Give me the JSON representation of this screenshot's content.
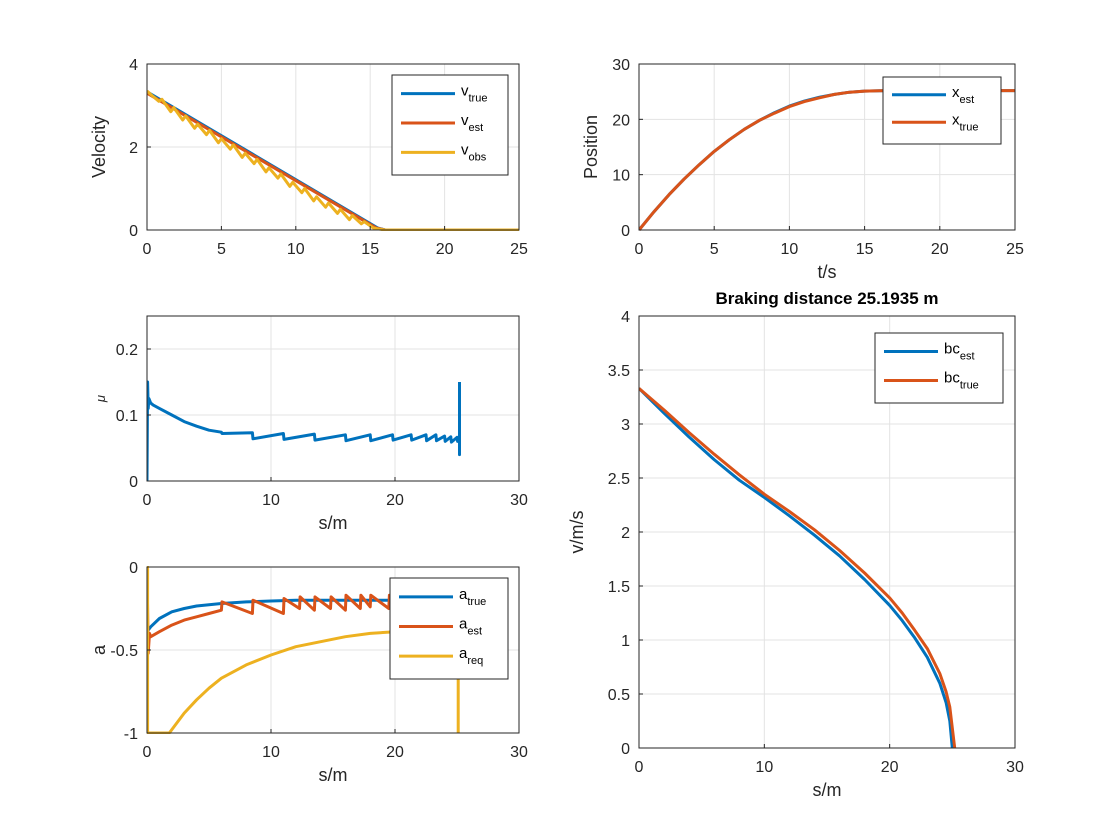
{
  "chart_data": [
    {
      "id": "velocity",
      "type": "line",
      "xlim": [
        0,
        25
      ],
      "ylim": [
        0,
        4
      ],
      "xticks": [
        0,
        5,
        10,
        15,
        20,
        25
      ],
      "yticks": [
        0,
        2,
        4
      ],
      "xlabel": "",
      "ylabel": "Velocity",
      "title": "",
      "grid": true,
      "legend": "top-right",
      "series": [
        {
          "name": "v",
          "sub": "true",
          "color": "#0072BD",
          "x": [
            0,
            15.5,
            16,
            25
          ],
          "y": [
            3.33,
            0.05,
            0,
            0
          ]
        },
        {
          "name": "v",
          "sub": "est",
          "color": "#D95319",
          "x": [
            0,
            15.4,
            16,
            25
          ],
          "y": [
            3.3,
            0.05,
            0,
            0
          ]
        },
        {
          "name": "v",
          "sub": "obs",
          "color": "#EDB120",
          "x": [
            0,
            0.3,
            0.8,
            1.0,
            1.6,
            1.8,
            2.4,
            2.6,
            3.2,
            3.4,
            4.0,
            4.2,
            4.8,
            5.0,
            5.6,
            5.8,
            6.4,
            6.6,
            7.2,
            7.4,
            8.0,
            8.2,
            8.8,
            9.0,
            9.6,
            9.8,
            10.4,
            10.6,
            11.2,
            11.4,
            12.0,
            12.2,
            12.8,
            13.0,
            13.6,
            13.8,
            14.4,
            14.6,
            15.2,
            15.5,
            16.0,
            25
          ],
          "y": [
            3.35,
            3.25,
            3.1,
            3.15,
            2.85,
            2.95,
            2.65,
            2.75,
            2.45,
            2.55,
            2.3,
            2.4,
            2.1,
            2.2,
            1.95,
            2.05,
            1.75,
            1.85,
            1.6,
            1.7,
            1.4,
            1.5,
            1.25,
            1.35,
            1.05,
            1.15,
            0.9,
            1.0,
            0.7,
            0.8,
            0.55,
            0.65,
            0.4,
            0.5,
            0.25,
            0.35,
            0.15,
            0.2,
            0.05,
            0.03,
            0,
            0
          ]
        }
      ]
    },
    {
      "id": "position",
      "type": "line",
      "xlim": [
        0,
        25
      ],
      "ylim": [
        0,
        30
      ],
      "xticks": [
        0,
        5,
        10,
        15,
        20,
        25
      ],
      "yticks": [
        0,
        10,
        20,
        30
      ],
      "xlabel": "t/s",
      "ylabel": "Position",
      "title": "",
      "grid": true,
      "legend": "top-right",
      "series": [
        {
          "name": "x",
          "sub": "est",
          "color": "#0072BD",
          "x": [
            0,
            1,
            2,
            3,
            4,
            5,
            6,
            7,
            8,
            9,
            10,
            11,
            12,
            13,
            14,
            15,
            16,
            17,
            25
          ],
          "y": [
            0,
            3.3,
            6.4,
            9.2,
            11.8,
            14.2,
            16.3,
            18.2,
            19.8,
            21.2,
            22.4,
            23.3,
            24.0,
            24.5,
            24.9,
            25.1,
            25.15,
            25.19,
            25.19
          ]
        },
        {
          "name": "x",
          "sub": "true",
          "color": "#D95319",
          "x": [
            0,
            1,
            2,
            3,
            4,
            5,
            6,
            7,
            8,
            9,
            10,
            11,
            12,
            13,
            14,
            15,
            16,
            17,
            25
          ],
          "y": [
            0,
            3.3,
            6.4,
            9.2,
            11.8,
            14.2,
            16.3,
            18.2,
            19.8,
            21.1,
            22.3,
            23.2,
            23.9,
            24.5,
            24.9,
            25.1,
            25.15,
            25.19,
            25.19
          ]
        }
      ]
    },
    {
      "id": "mu",
      "type": "line",
      "xlim": [
        0,
        30
      ],
      "ylim": [
        0,
        0.25
      ],
      "xticks": [
        0,
        10,
        20,
        30
      ],
      "yticks": [
        0,
        0.1,
        0.2
      ],
      "xlabel": "s/m",
      "ylabel": "μ",
      "title": "",
      "grid": true,
      "legend": "none",
      "series": [
        {
          "name": "",
          "sub": "",
          "color": "#0072BD",
          "x": [
            0,
            0.05,
            0.1,
            0.15,
            0.3,
            0.5,
            1.0,
            2.0,
            3.0,
            4.0,
            5.0,
            6.0,
            6.05,
            8.5,
            8.55,
            11.0,
            11.05,
            13.5,
            13.55,
            16.0,
            16.05,
            18.0,
            18.05,
            19.8,
            19.85,
            21.3,
            21.35,
            22.5,
            22.55,
            23.3,
            23.35,
            24.0,
            24.05,
            24.5,
            24.55,
            25.0,
            25.05,
            25.2,
            25.2,
            25.2
          ],
          "y": [
            0,
            0.15,
            0.11,
            0.125,
            0.118,
            0.115,
            0.11,
            0.1,
            0.09,
            0.083,
            0.077,
            0.074,
            0.072,
            0.073,
            0.064,
            0.072,
            0.063,
            0.071,
            0.062,
            0.07,
            0.061,
            0.07,
            0.061,
            0.07,
            0.062,
            0.07,
            0.062,
            0.07,
            0.061,
            0.07,
            0.061,
            0.068,
            0.06,
            0.067,
            0.059,
            0.066,
            0.06,
            0.065,
            0.04,
            0.15
          ]
        }
      ]
    },
    {
      "id": "accel",
      "type": "line",
      "xlim": [
        0,
        30
      ],
      "ylim": [
        -1,
        0
      ],
      "xticks": [
        0,
        10,
        20,
        30
      ],
      "yticks": [
        -1,
        -0.5,
        0
      ],
      "xlabel": "s/m",
      "ylabel": "a",
      "title": "",
      "grid": true,
      "legend": "top-right",
      "series": [
        {
          "name": "a",
          "sub": "true",
          "color": "#0072BD",
          "x": [
            0.1,
            0.3,
            1,
            2,
            3,
            4,
            6,
            8,
            10,
            12,
            14,
            16,
            18,
            20,
            22,
            24,
            25
          ],
          "y": [
            -0.38,
            -0.36,
            -0.31,
            -0.27,
            -0.25,
            -0.235,
            -0.22,
            -0.21,
            -0.205,
            -0.2,
            -0.2,
            -0.2,
            -0.2,
            -0.2,
            -0.2,
            -0.2,
            -0.2
          ]
        },
        {
          "name": "a",
          "sub": "est",
          "color": "#D95319",
          "x": [
            0,
            0.1,
            0.2,
            0.3,
            1,
            2,
            3,
            4,
            5,
            6,
            6.05,
            8.5,
            8.55,
            11,
            11.05,
            12.3,
            12.35,
            13.5,
            13.55,
            14.8,
            14.85,
            16,
            16.05,
            17.2,
            17.25,
            18,
            18.05,
            19.5,
            19.55,
            21,
            21.05,
            22,
            22.05,
            23,
            23.05,
            24,
            24.05,
            25
          ],
          "y": [
            0,
            -0.52,
            -0.4,
            -0.42,
            -0.39,
            -0.35,
            -0.32,
            -0.3,
            -0.28,
            -0.26,
            -0.21,
            -0.28,
            -0.2,
            -0.28,
            -0.19,
            -0.25,
            -0.18,
            -0.26,
            -0.18,
            -0.25,
            -0.18,
            -0.26,
            -0.17,
            -0.25,
            -0.17,
            -0.24,
            -0.17,
            -0.25,
            -0.17,
            -0.25,
            -0.17,
            -0.24,
            -0.17,
            -0.24,
            -0.17,
            -0.24,
            -0.17,
            -0.2
          ]
        },
        {
          "name": "a",
          "sub": "req",
          "color": "#EDB120",
          "x": [
            0,
            0,
            0.05,
            0.05,
            1.8,
            3,
            4,
            5,
            6,
            8,
            10,
            12,
            14,
            16,
            18,
            20,
            22,
            24,
            25.1,
            25.1
          ],
          "y": [
            -1,
            0,
            0,
            -1,
            -1,
            -0.88,
            -0.8,
            -0.73,
            -0.67,
            -0.59,
            -0.53,
            -0.48,
            -0.45,
            -0.42,
            -0.4,
            -0.39,
            -0.38,
            -0.37,
            -0.36,
            -1
          ]
        }
      ]
    },
    {
      "id": "braking",
      "type": "line",
      "xlim": [
        0,
        30
      ],
      "ylim": [
        0,
        4
      ],
      "xticks": [
        0,
        10,
        20,
        30
      ],
      "yticks": [
        0,
        0.5,
        1,
        1.5,
        2,
        2.5,
        3,
        3.5,
        4
      ],
      "xlabel": "s/m",
      "ylabel": "v/m/s",
      "title": "Braking distance 25.1935 m",
      "grid": true,
      "legend": "top-right",
      "series": [
        {
          "name": "bc",
          "sub": "est",
          "color": "#0072BD",
          "x": [
            0,
            2,
            4,
            6,
            8,
            10,
            12,
            14,
            16,
            18,
            20,
            21,
            22,
            23,
            24,
            24.5,
            24.8,
            25.0
          ],
          "y": [
            3.33,
            3.1,
            2.88,
            2.67,
            2.48,
            2.32,
            2.15,
            1.97,
            1.78,
            1.56,
            1.32,
            1.18,
            1.02,
            0.84,
            0.6,
            0.42,
            0.25,
            0
          ]
        },
        {
          "name": "bc",
          "sub": "true",
          "color": "#D95319",
          "x": [
            0,
            2,
            4,
            6,
            8,
            10,
            12,
            14,
            16,
            18,
            20,
            21,
            22,
            23,
            24,
            24.5,
            24.8,
            25.19
          ],
          "y": [
            3.33,
            3.13,
            2.92,
            2.72,
            2.53,
            2.35,
            2.19,
            2.02,
            1.83,
            1.62,
            1.39,
            1.25,
            1.09,
            0.92,
            0.69,
            0.52,
            0.38,
            0
          ]
        }
      ]
    }
  ]
}
